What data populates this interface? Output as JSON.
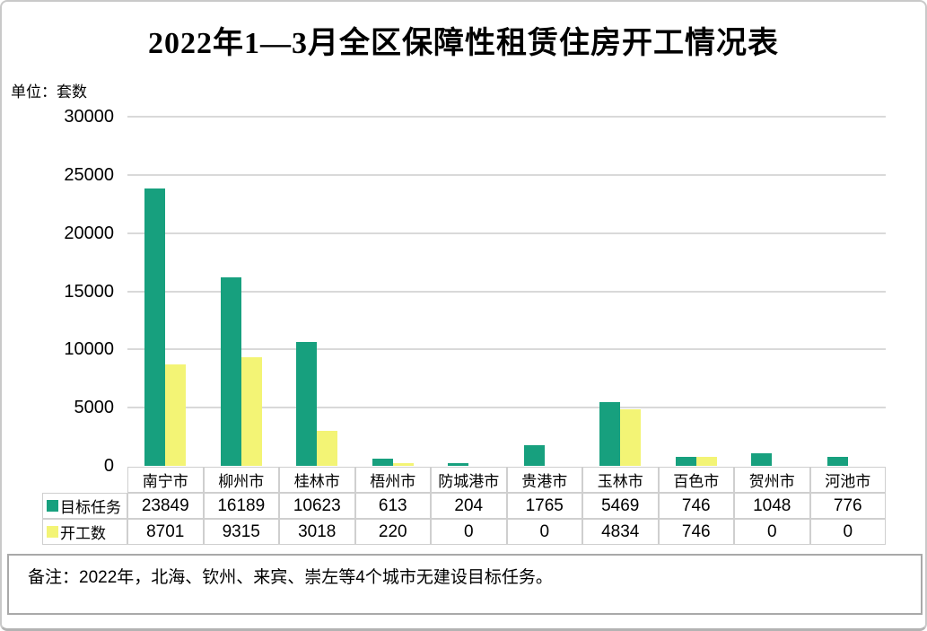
{
  "page": {
    "title": "2022年1—3月全区保障性租赁住房开工情况表",
    "unit_label": "单位：套数",
    "note": "备注：2022年，北海、钦州、来宾、崇左等4个城市无建设目标任务。"
  },
  "colors": {
    "target_series": "#17a07e",
    "started_series": "#f3f475",
    "gridline": "#d9d9d9",
    "table_border": "#cfcfcf"
  },
  "chart_data": {
    "type": "bar",
    "title": "2022年1—3月全区保障性租赁住房开工情况表",
    "ylabel": "单位：套数",
    "categories": [
      "南宁市",
      "柳州市",
      "桂林市",
      "梧州市",
      "防城港市",
      "贵港市",
      "玉林市",
      "百色市",
      "贺州市",
      "河池市"
    ],
    "series": [
      {
        "name": "目标任务",
        "color": "#17a07e",
        "values": [
          23849,
          16189,
          10623,
          613,
          204,
          1765,
          5469,
          746,
          1048,
          776
        ]
      },
      {
        "name": "开工数",
        "color": "#f3f475",
        "values": [
          8701,
          9315,
          3018,
          220,
          0,
          0,
          4834,
          746,
          0,
          0
        ]
      }
    ],
    "ylim": [
      0,
      30000
    ],
    "yticks": [
      30000,
      25000,
      20000,
      15000,
      10000,
      5000,
      0
    ],
    "grid": true,
    "legend_position": "table-left",
    "data_table_shown": true
  }
}
